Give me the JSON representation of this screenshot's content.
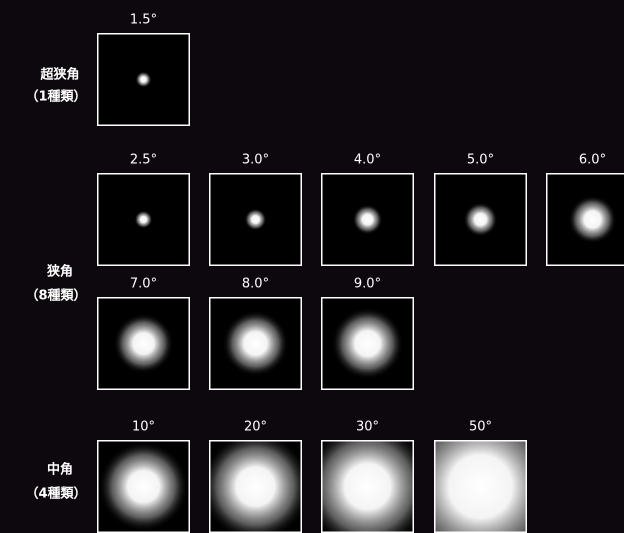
{
  "groups": [
    {
      "name": "超狭角",
      "count": "（1種類）",
      "items": [
        "1.5°"
      ]
    },
    {
      "name": "狭角",
      "count": "（8種類）",
      "items": [
        "2.5°",
        "3.0°",
        "4.0°",
        "5.0°",
        "6.0°",
        "7.0°",
        "8.0°",
        "9.0°"
      ]
    },
    {
      "name": "中角",
      "count": "（4種類）",
      "items": [
        "10°",
        "20°",
        "30°",
        "50°"
      ]
    }
  ]
}
